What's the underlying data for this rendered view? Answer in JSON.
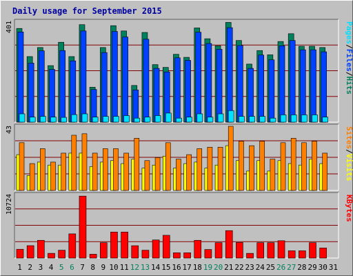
{
  "title": "Daily usage for September 2015",
  "colors": {
    "background": "#c0c0c0",
    "plot_background": "#c0c0c0",
    "hits": "#00805c",
    "files": "#0040ff",
    "pages": "#00e0ff",
    "visits": "#ffff00",
    "sites": "#ff8000",
    "kbytes": "#ff0000",
    "gridline": "#800000",
    "label_separator": "#000000",
    "weekend_label": "#00805c",
    "weekday_label": "#000000"
  },
  "chart_data": [
    {
      "type": "bar",
      "title": "Daily usage for September 2015",
      "categories": [
        "1",
        "2",
        "3",
        "4",
        "5",
        "6",
        "7",
        "8",
        "9",
        "10",
        "11",
        "12",
        "13",
        "14",
        "15",
        "16",
        "17",
        "18",
        "19",
        "20",
        "21",
        "22",
        "23",
        "24",
        "25",
        "26",
        "27",
        "28",
        "29",
        "30",
        "31"
      ],
      "weekend_days": [
        "5",
        "6",
        "12",
        "13",
        "19",
        "20",
        "26",
        "27"
      ],
      "ymax_label": "401",
      "ylim": [
        0,
        401
      ],
      "side_labels": [
        {
          "text": "Pages",
          "color": "#00e0ff"
        },
        {
          "text": "/",
          "color": "#000000"
        },
        {
          "text": "Files",
          "color": "#0040ff"
        },
        {
          "text": "/",
          "color": "#000000"
        },
        {
          "text": "Hits",
          "color": "#00805c"
        }
      ],
      "series": [
        {
          "name": "Hits",
          "values": [
            373,
            261,
            297,
            225,
            318,
            261,
            388,
            139,
            297,
            384,
            363,
            146,
            357,
            229,
            218,
            270,
            258,
            375,
            332,
            304,
            397,
            325,
            231,
            285,
            268,
            321,
            352,
            302,
            302,
            297,
            0
          ]
        },
        {
          "name": "Files",
          "values": [
            359,
            235,
            284,
            210,
            285,
            244,
            363,
            130,
            277,
            361,
            339,
            128,
            330,
            214,
            200,
            256,
            246,
            358,
            313,
            290,
            376,
            305,
            214,
            267,
            248,
            304,
            325,
            288,
            288,
            280,
            0
          ]
        },
        {
          "name": "Pages",
          "values": [
            33,
            20,
            23,
            20,
            19,
            30,
            33,
            20,
            23,
            23,
            26,
            16,
            20,
            26,
            36,
            16,
            20,
            33,
            20,
            33,
            46,
            23,
            23,
            23,
            16,
            29,
            29,
            29,
            29,
            20,
            0
          ]
        }
      ]
    },
    {
      "type": "bar",
      "categories": [
        "1",
        "2",
        "3",
        "4",
        "5",
        "6",
        "7",
        "8",
        "9",
        "10",
        "11",
        "12",
        "13",
        "14",
        "15",
        "16",
        "17",
        "18",
        "19",
        "20",
        "21",
        "22",
        "23",
        "24",
        "25",
        "26",
        "27",
        "28",
        "29",
        "30",
        "31"
      ],
      "ymax_label": "43",
      "ylim": [
        0,
        43
      ],
      "side_labels": [
        {
          "text": "Sites",
          "color": "#ff8000"
        },
        {
          "text": "/",
          "color": "#000000"
        },
        {
          "text": "Visits",
          "color": "#ffff00"
        }
      ],
      "series": [
        {
          "name": "Sites",
          "values": [
            32,
            18,
            28,
            19,
            25,
            37,
            38,
            25,
            28,
            28,
            25,
            35,
            20,
            22,
            32,
            21,
            24,
            28,
            29,
            29,
            43,
            33,
            30,
            33,
            21,
            32,
            35,
            32,
            33,
            25,
            0
          ]
        },
        {
          "name": "Visits",
          "values": [
            24,
            10,
            19,
            17,
            17,
            25,
            25,
            16,
            19,
            20,
            18,
            21,
            15,
            17,
            23,
            15,
            18,
            19,
            15,
            17,
            30,
            20,
            13,
            20,
            13,
            20,
            18,
            17,
            21,
            18,
            0
          ]
        }
      ]
    },
    {
      "type": "bar",
      "categories": [
        "1",
        "2",
        "3",
        "4",
        "5",
        "6",
        "7",
        "8",
        "9",
        "10",
        "11",
        "12",
        "13",
        "14",
        "15",
        "16",
        "17",
        "18",
        "19",
        "20",
        "21",
        "22",
        "23",
        "24",
        "25",
        "26",
        "27",
        "28",
        "29",
        "30",
        "31"
      ],
      "ymax_label": "10724",
      "ylim": [
        0,
        10724
      ],
      "side_labels": [
        {
          "text": "KBytes",
          "color": "#ff0000"
        }
      ],
      "series": [
        {
          "name": "KBytes",
          "values": [
            1490,
            2100,
            3000,
            800,
            1330,
            4090,
            10470,
            650,
            2600,
            4400,
            4400,
            2090,
            1330,
            3060,
            3850,
            900,
            900,
            3000,
            1450,
            2600,
            4640,
            2630,
            800,
            2600,
            2600,
            2930,
            1230,
            1230,
            2600,
            1700,
            0
          ]
        }
      ]
    }
  ]
}
